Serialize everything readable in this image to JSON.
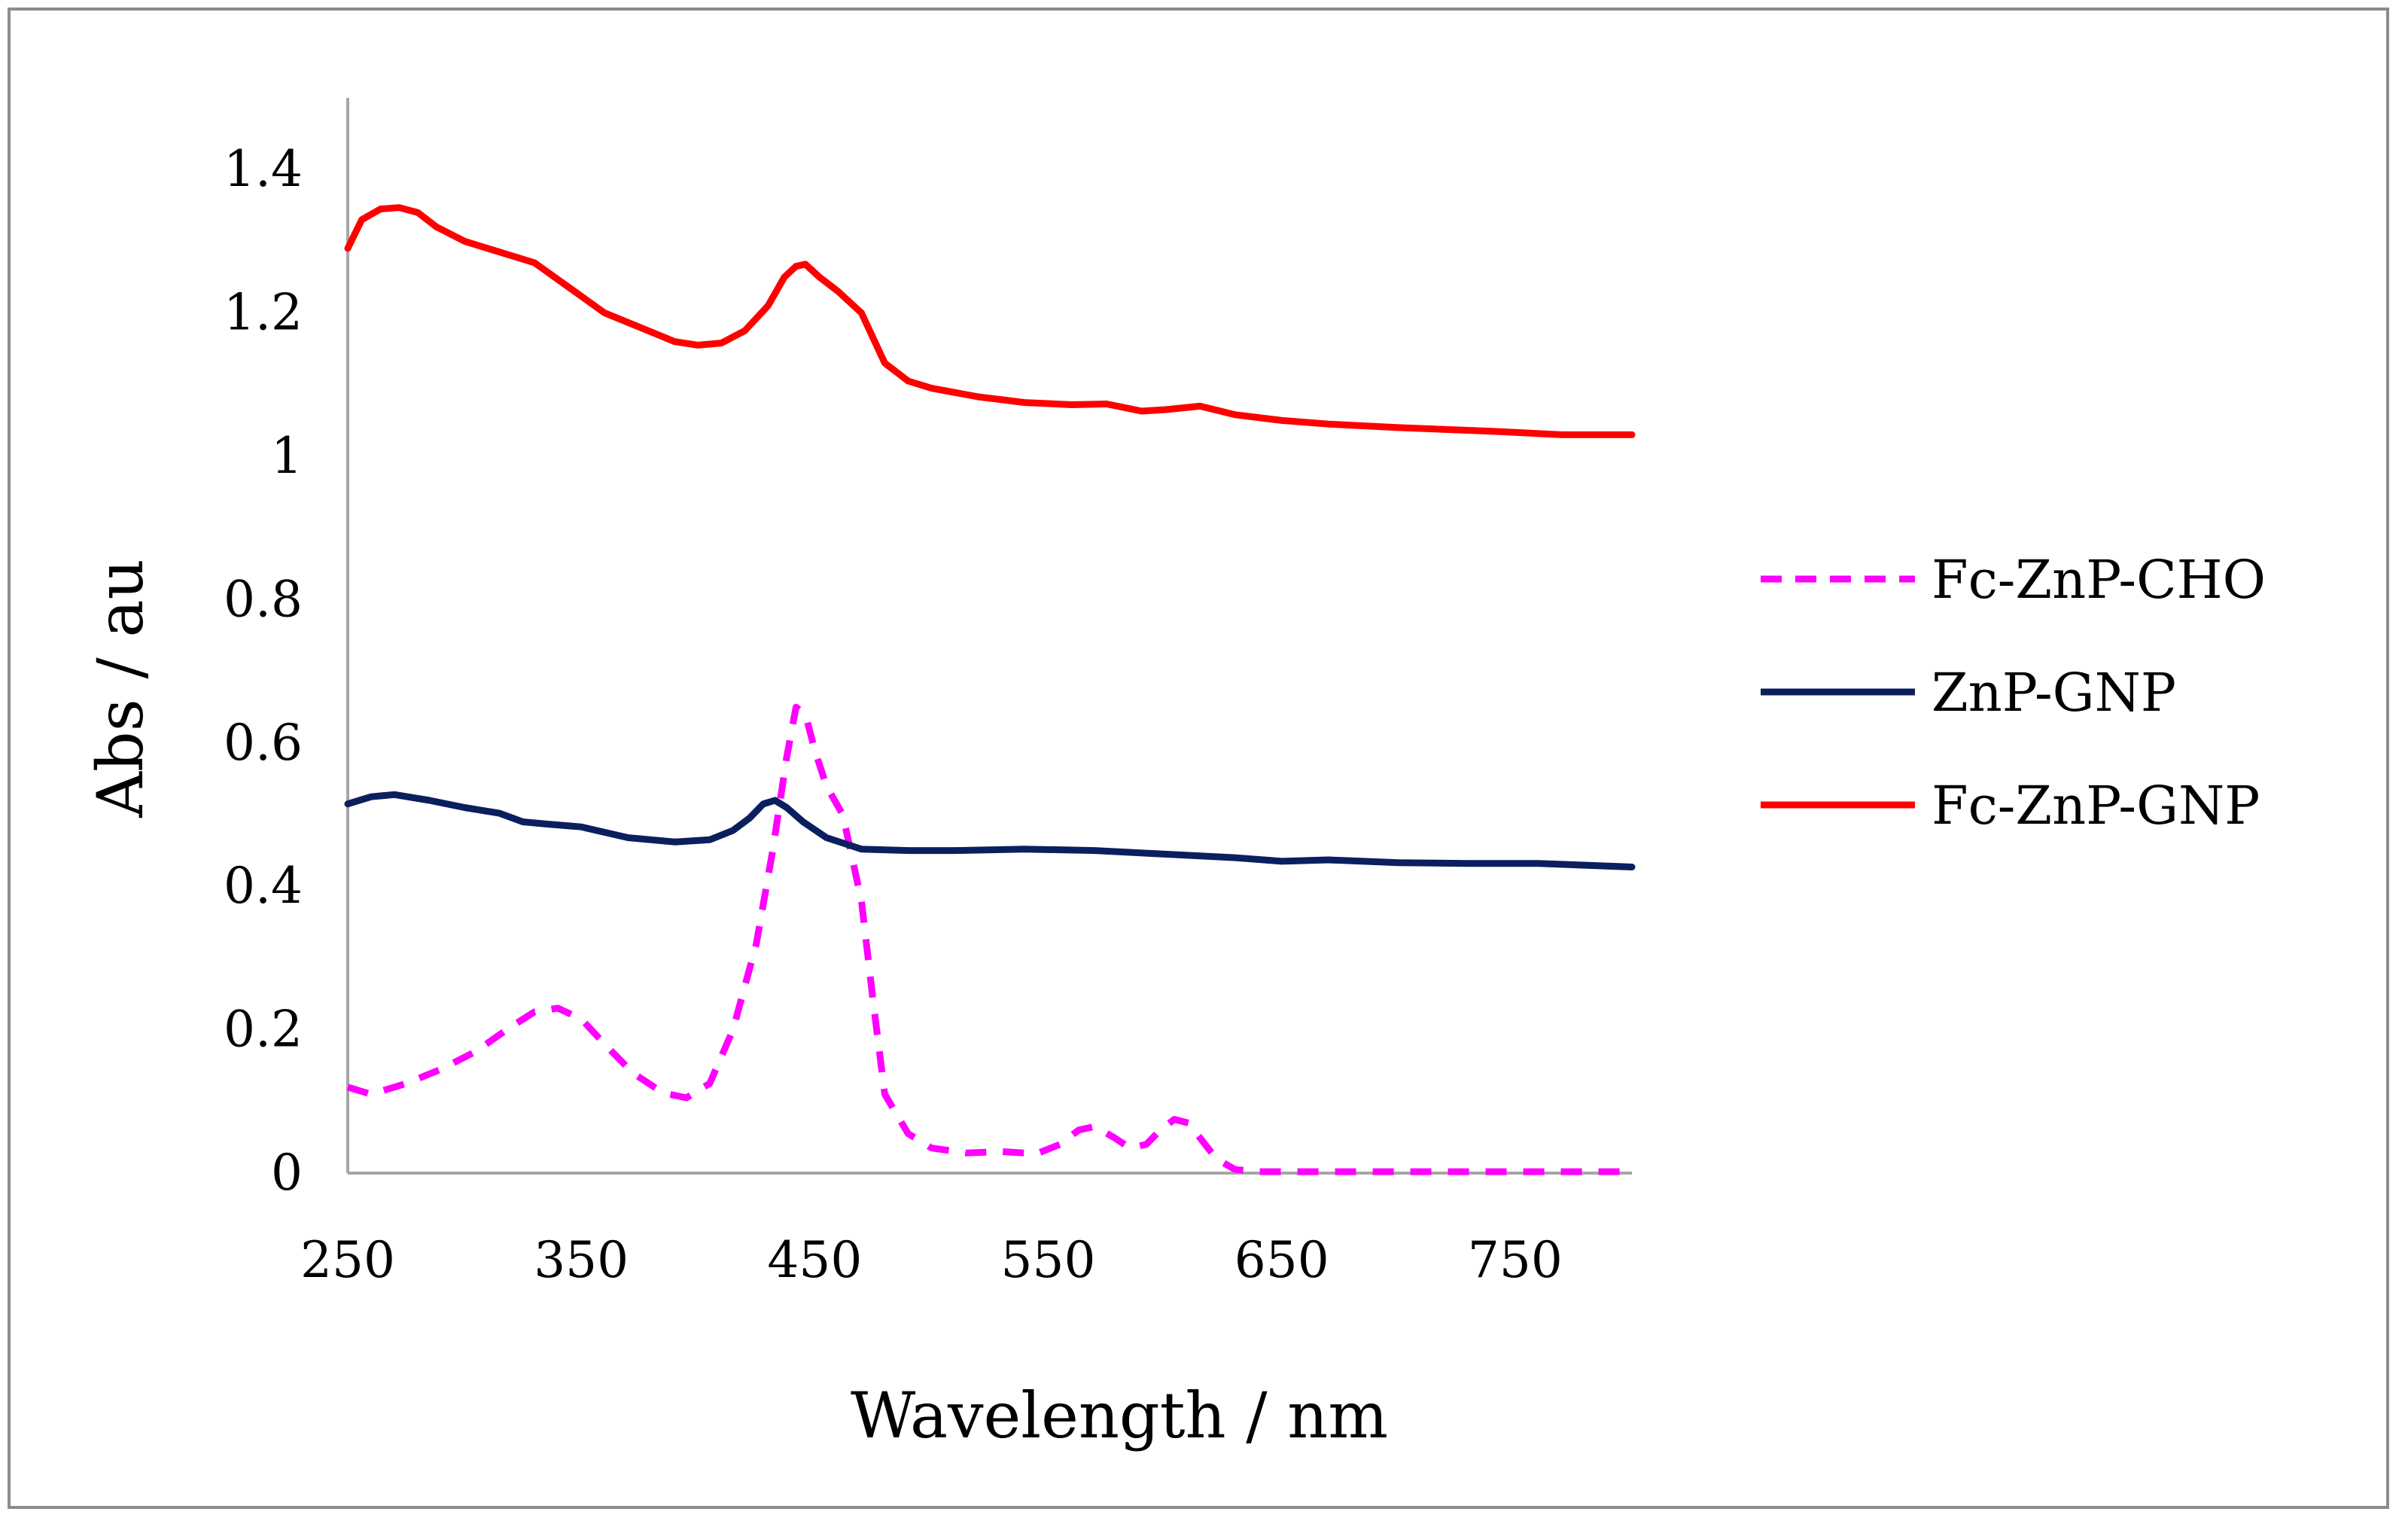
{
  "chart_data": {
    "type": "line",
    "title": "",
    "xlabel": "Wavelength / nm",
    "ylabel": "Abs / au",
    "xlim": [
      250,
      800
    ],
    "ylim": [
      0,
      1.5
    ],
    "xticks": [
      250,
      350,
      450,
      550,
      650,
      750
    ],
    "xtick_labels": [
      "250",
      "350",
      "450",
      "550",
      "650",
      "750"
    ],
    "yticks": [
      0,
      0.2,
      0.4,
      0.6,
      0.8,
      1.0,
      1.2,
      1.4
    ],
    "ytick_labels": [
      "0",
      "0.2",
      "0.4",
      "0.6",
      "0.8",
      "1",
      "1.2",
      "1.4"
    ],
    "grid": false,
    "legend_position": "right",
    "series": [
      {
        "name": "Fc-ZnP-CHO",
        "color": "#ff00ff",
        "dash": "dashed",
        "x": [
          250,
          260,
          275,
          290,
          305,
          318,
          330,
          340,
          350,
          360,
          372,
          385,
          395,
          405,
          415,
          425,
          432,
          438,
          442,
          446,
          450,
          455,
          462,
          470,
          475,
          480,
          490,
          500,
          515,
          530,
          545,
          555,
          563,
          570,
          578,
          585,
          592,
          598,
          604,
          610,
          616,
          622,
          630,
          640,
          660,
          700,
          750,
          800
        ],
        "y": [
          0.12,
          0.11,
          0.125,
          0.145,
          0.17,
          0.2,
          0.225,
          0.23,
          0.215,
          0.18,
          0.14,
          0.112,
          0.105,
          0.125,
          0.2,
          0.32,
          0.45,
          0.58,
          0.65,
          0.64,
          0.59,
          0.54,
          0.5,
          0.38,
          0.24,
          0.11,
          0.055,
          0.035,
          0.028,
          0.03,
          0.027,
          0.04,
          0.06,
          0.065,
          0.05,
          0.035,
          0.04,
          0.06,
          0.075,
          0.07,
          0.045,
          0.02,
          0.005,
          0.002,
          0.002,
          0.002,
          0.002,
          0.002
        ]
      },
      {
        "name": "ZnP-GNP",
        "color": "#0b1f5e",
        "dash": "solid",
        "x": [
          250,
          260,
          270,
          285,
          300,
          315,
          325,
          335,
          350,
          370,
          390,
          405,
          415,
          422,
          428,
          433,
          438,
          445,
          455,
          470,
          490,
          510,
          540,
          570,
          600,
          630,
          650,
          670,
          700,
          730,
          760,
          800
        ],
        "y": [
          0.515,
          0.525,
          0.528,
          0.52,
          0.51,
          0.502,
          0.49,
          0.487,
          0.483,
          0.468,
          0.462,
          0.465,
          0.478,
          0.495,
          0.515,
          0.52,
          0.51,
          0.49,
          0.468,
          0.452,
          0.45,
          0.45,
          0.452,
          0.45,
          0.445,
          0.44,
          0.435,
          0.437,
          0.433,
          0.432,
          0.432,
          0.427
        ]
      },
      {
        "name": "Fc-ZnP-GNP",
        "color": "#ff0000",
        "dash": "solid",
        "x": [
          250,
          256,
          264,
          272,
          280,
          288,
          300,
          315,
          330,
          345,
          360,
          375,
          390,
          400,
          410,
          420,
          430,
          437,
          442,
          446,
          452,
          460,
          470,
          480,
          490,
          500,
          520,
          540,
          560,
          575,
          590,
          600,
          615,
          630,
          650,
          670,
          700,
          740,
          770,
          800
        ],
        "y": [
          1.29,
          1.33,
          1.345,
          1.347,
          1.34,
          1.32,
          1.3,
          1.285,
          1.27,
          1.235,
          1.2,
          1.18,
          1.16,
          1.155,
          1.158,
          1.175,
          1.21,
          1.25,
          1.265,
          1.268,
          1.25,
          1.23,
          1.2,
          1.13,
          1.105,
          1.095,
          1.083,
          1.075,
          1.072,
          1.073,
          1.063,
          1.065,
          1.07,
          1.058,
          1.05,
          1.045,
          1.04,
          1.035,
          1.03,
          1.03
        ]
      }
    ]
  }
}
